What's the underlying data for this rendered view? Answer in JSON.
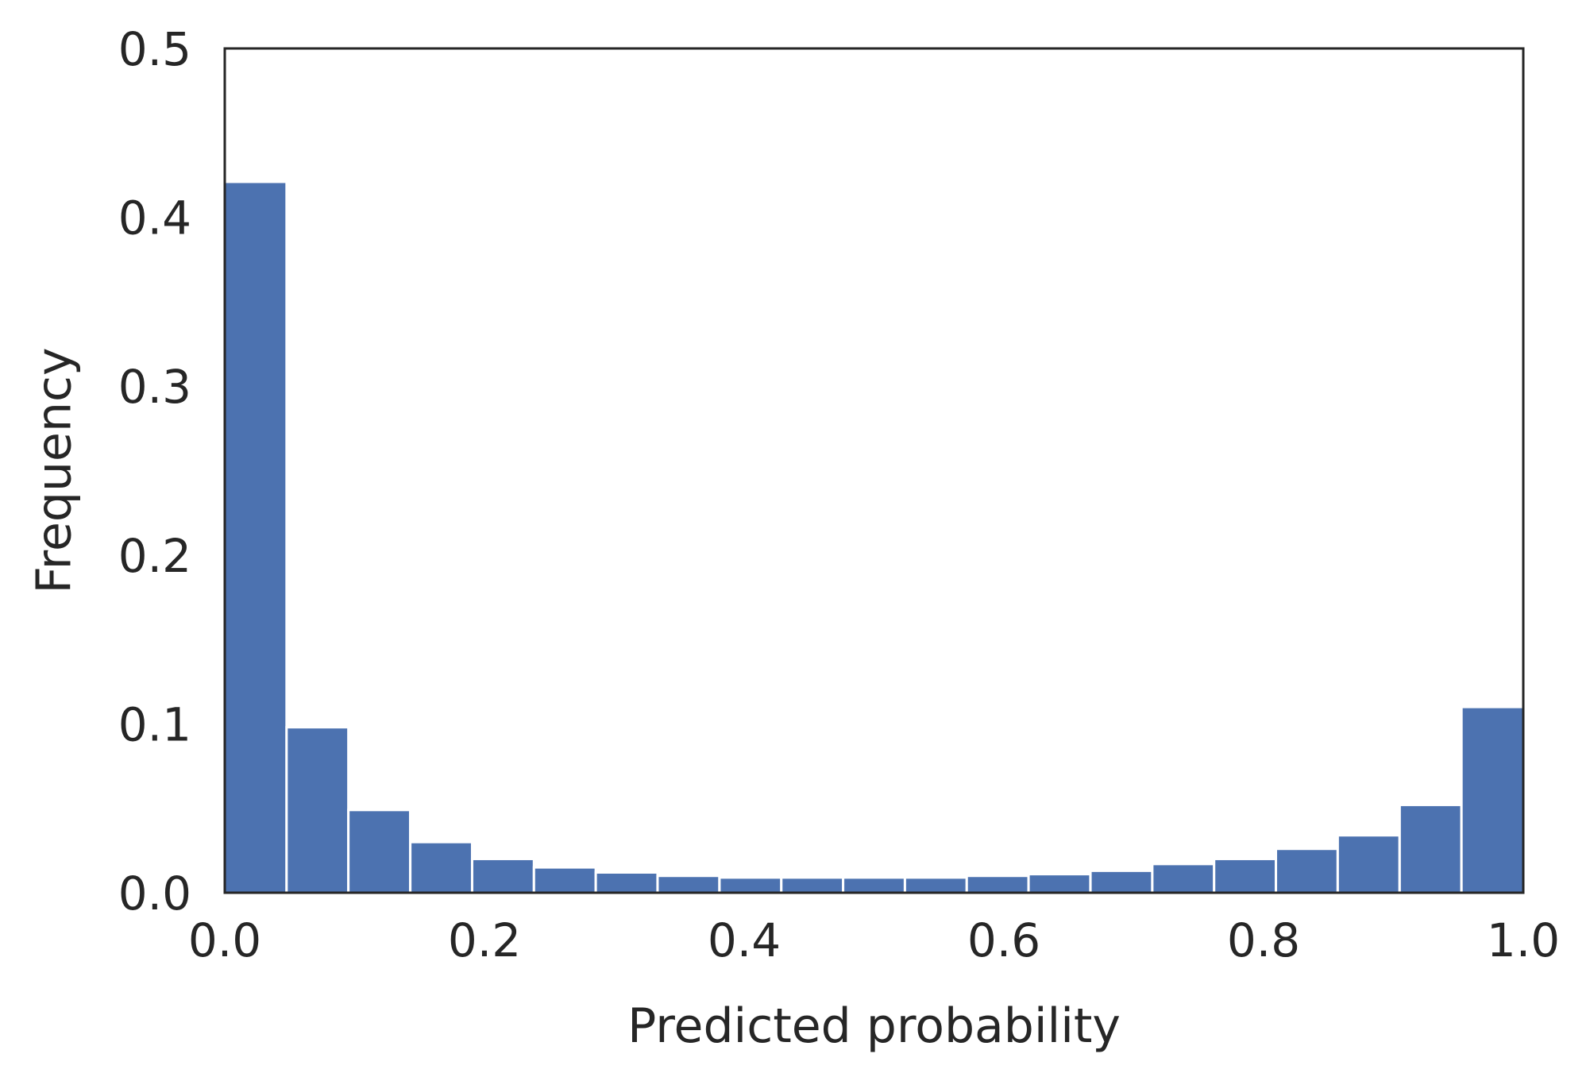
{
  "chart_data": {
    "type": "bar",
    "xlabel": "Predicted probability",
    "ylabel": "Frequency",
    "xlim": [
      0.0,
      1.0
    ],
    "ylim": [
      0.0,
      0.5
    ],
    "xticks": [
      "0.0",
      "0.2",
      "0.4",
      "0.6",
      "0.8",
      "1.0"
    ],
    "yticks": [
      "0.0",
      "0.1",
      "0.2",
      "0.3",
      "0.4",
      "0.5"
    ],
    "bin_width": 0.0476,
    "bins": [
      {
        "x0": 0.0,
        "value": 0.421
      },
      {
        "x0": 0.0476,
        "value": 0.098
      },
      {
        "x0": 0.0952,
        "value": 0.049
      },
      {
        "x0": 0.1429,
        "value": 0.03
      },
      {
        "x0": 0.1905,
        "value": 0.02
      },
      {
        "x0": 0.2381,
        "value": 0.015
      },
      {
        "x0": 0.2857,
        "value": 0.012
      },
      {
        "x0": 0.3333,
        "value": 0.01
      },
      {
        "x0": 0.381,
        "value": 0.009
      },
      {
        "x0": 0.4286,
        "value": 0.009
      },
      {
        "x0": 0.4762,
        "value": 0.009
      },
      {
        "x0": 0.5238,
        "value": 0.009
      },
      {
        "x0": 0.5714,
        "value": 0.01
      },
      {
        "x0": 0.619,
        "value": 0.011
      },
      {
        "x0": 0.6667,
        "value": 0.013
      },
      {
        "x0": 0.7143,
        "value": 0.017
      },
      {
        "x0": 0.7619,
        "value": 0.02
      },
      {
        "x0": 0.8095,
        "value": 0.026
      },
      {
        "x0": 0.8571,
        "value": 0.034
      },
      {
        "x0": 0.9048,
        "value": 0.052
      },
      {
        "x0": 0.9524,
        "value": 0.11
      }
    ],
    "bar_color": "#4c72b0",
    "grid": false,
    "legend": "none"
  }
}
